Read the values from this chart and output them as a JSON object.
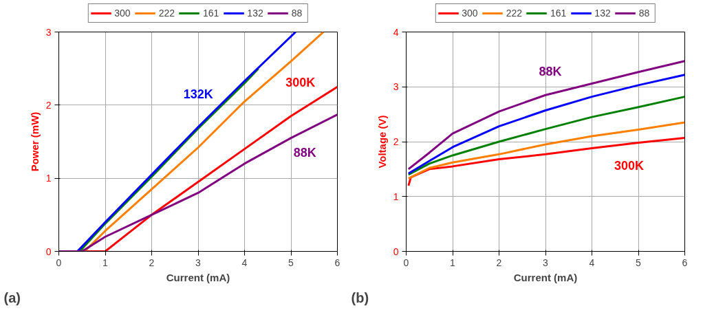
{
  "chart_data": [
    {
      "type": "line",
      "xlabel": "Current (mA)",
      "ylabel": "Power (mW)",
      "xlim": [
        0,
        6
      ],
      "ylim": [
        0,
        3
      ],
      "xticks": [
        0,
        1,
        2,
        3,
        4,
        5,
        6
      ],
      "yticks": [
        0,
        1,
        2,
        3
      ],
      "grid": true,
      "legend": "top",
      "marker": "none",
      "line_style": "solid",
      "series": [
        {
          "name": "300",
          "color": "#ff0000",
          "x": [
            0,
            0.5,
            1.0,
            1.5,
            2,
            3,
            4,
            5,
            6
          ],
          "values": [
            0,
            0,
            0,
            0.25,
            0.5,
            0.95,
            1.4,
            1.85,
            2.25
          ]
        },
        {
          "name": "222",
          "color": "#ff7f00",
          "x": [
            0,
            0.5,
            0.6,
            1,
            2,
            3,
            4,
            5,
            5.7
          ],
          "values": [
            0,
            0,
            0.03,
            0.28,
            0.85,
            1.42,
            2.05,
            2.6,
            3.0
          ]
        },
        {
          "name": "161",
          "color": "#008000",
          "x": [
            0,
            0.45,
            1,
            2,
            3,
            4,
            4.3
          ],
          "values": [
            0,
            0,
            0.38,
            1.02,
            1.68,
            2.3,
            2.5
          ]
        },
        {
          "name": "132",
          "color": "#0000ff",
          "x": [
            0,
            0.4,
            1,
            2,
            3,
            4,
            5.1
          ],
          "values": [
            0,
            0,
            0.4,
            1.05,
            1.7,
            2.33,
            3.0
          ]
        },
        {
          "name": "88",
          "color": "#800080",
          "x": [
            0,
            0.5,
            1,
            2,
            3,
            4,
            5,
            6
          ],
          "values": [
            0,
            0,
            0.2,
            0.5,
            0.8,
            1.2,
            1.55,
            1.87
          ]
        }
      ],
      "annotations": [
        {
          "text": "132K",
          "x": 3.3,
          "y": 1.89
        },
        {
          "text": "300K",
          "x": 5.5,
          "y": 2.05
        },
        {
          "text": "88K",
          "x": 5.3,
          "y": 1.65
        },
        "(a)"
      ]
    },
    {
      "type": "line",
      "xlabel": "Current (mA)",
      "ylabel": "Voltage (V)",
      "xlim": [
        0,
        6
      ],
      "ylim": [
        0,
        4
      ],
      "xticks": [
        0,
        1,
        2,
        3,
        4,
        5,
        6
      ],
      "yticks": [
        0,
        1,
        2,
        3,
        4
      ],
      "grid": true,
      "legend": "top",
      "marker": "none",
      "line_style": "solid",
      "series": [
        {
          "name": "300",
          "color": "#ff0000",
          "x": [
            0.05,
            0.1,
            0.5,
            1,
            2,
            3,
            4,
            5,
            6
          ],
          "values": [
            1.2,
            1.35,
            1.5,
            1.55,
            1.68,
            1.77,
            1.88,
            1.98,
            2.07
          ]
        },
        {
          "name": "222",
          "color": "#ff7f00",
          "x": [
            0.05,
            0.5,
            1,
            2,
            3,
            4,
            5,
            6
          ],
          "values": [
            1.33,
            1.52,
            1.62,
            1.77,
            1.95,
            2.1,
            2.22,
            2.35
          ]
        },
        {
          "name": "161",
          "color": "#008000",
          "x": [
            0.05,
            0.5,
            1,
            2,
            3,
            4,
            5,
            6
          ],
          "values": [
            1.4,
            1.6,
            1.75,
            2.0,
            2.23,
            2.45,
            2.63,
            2.82
          ]
        },
        {
          "name": "132",
          "color": "#0000ff",
          "x": [
            0.05,
            0.5,
            1,
            2,
            3,
            4,
            5,
            6
          ],
          "values": [
            1.42,
            1.65,
            1.9,
            2.28,
            2.57,
            2.82,
            3.03,
            3.22
          ]
        },
        {
          "name": "88",
          "color": "#800080",
          "x": [
            0.05,
            0.5,
            1,
            2,
            3,
            4,
            5,
            6
          ],
          "values": [
            1.5,
            1.8,
            2.15,
            2.55,
            2.85,
            3.06,
            3.27,
            3.47
          ]
        }
      ],
      "annotations": [
        {
          "text": "88K",
          "x": 3.4,
          "y": 2.93
        },
        {
          "text": "300K",
          "x": 4.8,
          "y": 1.96
        },
        "(b)"
      ]
    }
  ]
}
